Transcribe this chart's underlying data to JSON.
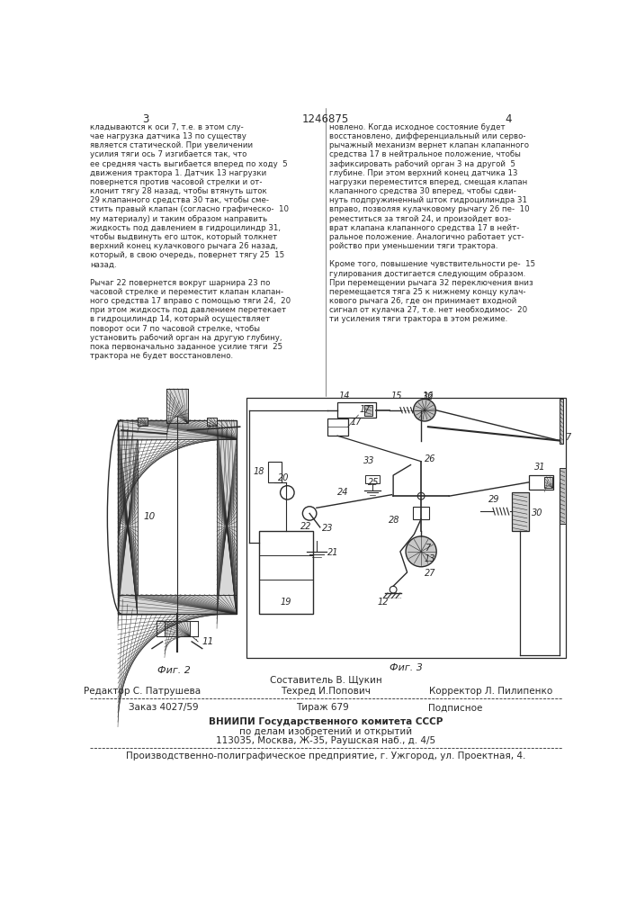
{
  "page_number_left": "3",
  "page_number_center": "1246875",
  "page_number_right": "4",
  "bg_color": "#ffffff",
  "text_color": "#2a2a2a",
  "col1_text": [
    "кладываются к оси 7, т.е. в этом слу-",
    "чае нагрузка датчика 13 по существу",
    "является статической. При увеличении",
    "усилия тяги ось 7 изгибается так, что",
    "ее средняя часть выгибается вперед по ходу  5",
    "движения трактора 1. Датчик 13 нагрузки",
    "повернется против часовой стрелки и от-",
    "клонит тягу 28 назад, чтобы втянуть шток",
    "29 клапанного средства 30 так, чтобы сме-",
    "стить правый клапан (согласно графическо-  10",
    "му материалу) и таким образом направить",
    "жидкость под давлением в гидроцилиндр 31,",
    "чтобы выдвинуть его шток, который толкнет",
    "верхний конец кулачкового рычага 26 назад,",
    "который, в свою очередь, повернет тягу 25  15",
    "назад.",
    " ",
    "Рычаг 22 повернется вокруг шарнира 23 по",
    "часовой стрелке и переместит клапан клапан-",
    "ного средства 17 вправо с помощью тяги 24,  20",
    "при этом жидкость под давлением перетекает",
    "в гидроцилиндр 14, который осуществляет",
    "поворот оси 7 по часовой стрелке, чтобы",
    "установить рабочий орган на другую глубину,",
    "пока первоначально заданное усилие тяги  25",
    "трактора не будет восстановлено."
  ],
  "col2_text": [
    "новлено. Когда исходное состояние будет",
    "восстановлено, дифференциальный или серво-",
    "рычажный механизм вернет клапан клапанного",
    "средства 17 в нейтральное положение, чтобы",
    "зафиксировать рабочий орган 3 на другой  5",
    "глубине. При этом верхний конец датчика 13",
    "нагрузки переместится вперед, смещая клапан",
    "клапанного средства 30 вперед, чтобы сдви-",
    "нуть подпружиненный шток гидроцилиндра 31",
    "вправо, позволяя кулачковому рычагу 26 пе-  10",
    "реместиться за тягой 24, и произойдет воз-",
    "врат клапана клапанного средства 17 в нейт-",
    "ральное положение. Аналогично работает уст-",
    "ройство при уменьшении тяги трактора.",
    " ",
    "Кроме того, повышение чувствительности ре-  15",
    "гулирования достигается следующим образом.",
    "При перемещении рычага 32 переключения вниз",
    "перемещается тяга 25 к нижнему концу кулач-",
    "кового рычага 26, где он принимает входной",
    "сигнал от кулачка 27, т.е. нет необходимос-  20",
    "ти усиления тяги трактора в этом режиме."
  ],
  "fig2_label": "Фиг. 2",
  "fig3_label": "Фиг. 3",
  "footer_editor_label": "Редактор С. Патрушева",
  "footer_composer_label": "Составитель В. Щукин",
  "footer_tech_label": "Техред И.Попович",
  "footer_corrector_label": "Корректор Л. Пилипенко",
  "footer_order": "Заказ 4027/59",
  "footer_tirazh": "Тираж 679",
  "footer_podpisnoe": "Подписное",
  "footer_vniizi1": "ВНИИПИ Государственного комитета СССР",
  "footer_vniizi2": "по делам изобретений и открытий",
  "footer_vniizi3": "113035, Москва, Ж-35, Раушская наб., д. 4/5",
  "footer_polygraf": "Производственно-полиграфическое предприятие, г. Ужгород, ул. Проектная, 4."
}
